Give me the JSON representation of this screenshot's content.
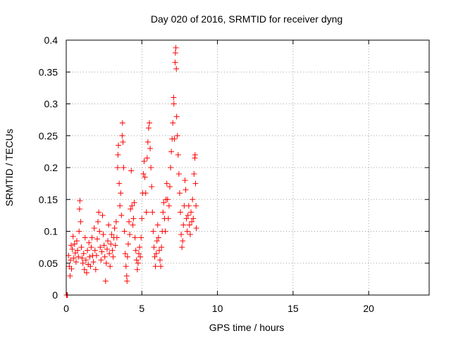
{
  "chart_data": {
    "type": "scatter",
    "title": "Day 020 of 2016, SRMTID for receiver dyng",
    "xlabel": "GPS time / hours",
    "ylabel": "SRMTID / TECUs",
    "xlim": [
      0,
      24
    ],
    "ylim": [
      0,
      0.4
    ],
    "xticks": [
      0,
      5,
      10,
      15,
      20
    ],
    "yticks": [
      0,
      0.05,
      0.1,
      0.15,
      0.2,
      0.25,
      0.3,
      0.35,
      0.4
    ],
    "grid": true,
    "marker": "+",
    "color": "#ff0000",
    "series": [
      {
        "name": "SRMTID",
        "points": [
          [
            0.02,
            0.0
          ],
          [
            0.05,
            0.0
          ],
          [
            0.08,
            0.0
          ],
          [
            0.15,
            0.062
          ],
          [
            0.2,
            0.045
          ],
          [
            0.25,
            0.03
          ],
          [
            0.28,
            0.055
          ],
          [
            0.32,
            0.078
          ],
          [
            0.35,
            0.041
          ],
          [
            0.4,
            0.072
          ],
          [
            0.45,
            0.092
          ],
          [
            0.5,
            0.058
          ],
          [
            0.55,
            0.08
          ],
          [
            0.6,
            0.066
          ],
          [
            0.65,
            0.052
          ],
          [
            0.7,
            0.085
          ],
          [
            0.75,
            0.07
          ],
          [
            0.8,
            0.06
          ],
          [
            0.85,
            0.1
          ],
          [
            0.88,
            0.135
          ],
          [
            0.9,
            0.148
          ],
          [
            0.95,
            0.115
          ],
          [
            1.0,
            0.075
          ],
          [
            1.05,
            0.058
          ],
          [
            1.1,
            0.05
          ],
          [
            1.15,
            0.065
          ],
          [
            1.2,
            0.04
          ],
          [
            1.25,
            0.09
          ],
          [
            1.3,
            0.055
          ],
          [
            1.35,
            0.035
          ],
          [
            1.4,
            0.07
          ],
          [
            1.45,
            0.048
          ],
          [
            1.5,
            0.082
          ],
          [
            1.55,
            0.06
          ],
          [
            1.6,
            0.045
          ],
          [
            1.65,
            0.075
          ],
          [
            1.7,
            0.09
          ],
          [
            1.75,
            0.062
          ],
          [
            1.8,
            0.052
          ],
          [
            1.85,
            0.105
          ],
          [
            1.9,
            0.07
          ],
          [
            1.95,
            0.04
          ],
          [
            2.0,
            0.062
          ],
          [
            2.05,
            0.088
          ],
          [
            2.1,
            0.115
          ],
          [
            2.15,
            0.13
          ],
          [
            2.2,
            0.1
          ],
          [
            2.25,
            0.075
          ],
          [
            2.3,
            0.055
          ],
          [
            2.35,
            0.068
          ],
          [
            2.4,
            0.125
          ],
          [
            2.45,
            0.095
          ],
          [
            2.5,
            0.078
          ],
          [
            2.55,
            0.06
          ],
          [
            2.6,
            0.022
          ],
          [
            2.65,
            0.05
          ],
          [
            2.7,
            0.072
          ],
          [
            2.75,
            0.085
          ],
          [
            2.8,
            0.11
          ],
          [
            2.85,
            0.065
          ],
          [
            2.9,
            0.045
          ],
          [
            2.95,
            0.08
          ],
          [
            3.0,
            0.095
          ],
          [
            3.05,
            0.07
          ],
          [
            3.1,
            0.06
          ],
          [
            3.15,
            0.09
          ],
          [
            3.2,
            0.105
          ],
          [
            3.25,
            0.078
          ],
          [
            3.3,
            0.115
          ],
          [
            3.35,
            0.09
          ],
          [
            3.4,
            0.2
          ],
          [
            3.42,
            0.22
          ],
          [
            3.45,
            0.235
          ],
          [
            3.5,
            0.175
          ],
          [
            3.55,
            0.14
          ],
          [
            3.6,
            0.16
          ],
          [
            3.65,
            0.125
          ],
          [
            3.7,
            0.25
          ],
          [
            3.72,
            0.27
          ],
          [
            3.75,
            0.24
          ],
          [
            3.8,
            0.2
          ],
          [
            3.85,
            0.1
          ],
          [
            3.9,
            0.065
          ],
          [
            3.95,
            0.045
          ],
          [
            4.0,
            0.03
          ],
          [
            4.02,
            0.022
          ],
          [
            4.05,
            0.06
          ],
          [
            4.1,
            0.08
          ],
          [
            4.15,
            0.115
          ],
          [
            4.2,
            0.095
          ],
          [
            4.25,
            0.135
          ],
          [
            4.3,
            0.195
          ],
          [
            4.35,
            0.14
          ],
          [
            4.4,
            0.11
          ],
          [
            4.45,
            0.12
          ],
          [
            4.5,
            0.145
          ],
          [
            4.55,
            0.09
          ],
          [
            4.6,
            0.07
          ],
          [
            4.65,
            0.055
          ],
          [
            4.7,
            0.04
          ],
          [
            4.75,
            0.05
          ],
          [
            4.8,
            0.065
          ],
          [
            4.85,
            0.075
          ],
          [
            4.9,
            0.06
          ],
          [
            4.95,
            0.09
          ],
          [
            5.0,
            0.12
          ],
          [
            5.05,
            0.16
          ],
          [
            5.1,
            0.19
          ],
          [
            5.15,
            0.21
          ],
          [
            5.2,
            0.185
          ],
          [
            5.25,
            0.16
          ],
          [
            5.3,
            0.13
          ],
          [
            5.35,
            0.215
          ],
          [
            5.4,
            0.24
          ],
          [
            5.45,
            0.262
          ],
          [
            5.5,
            0.27
          ],
          [
            5.55,
            0.23
          ],
          [
            5.6,
            0.2
          ],
          [
            5.65,
            0.17
          ],
          [
            5.7,
            0.13
          ],
          [
            5.75,
            0.1
          ],
          [
            5.8,
            0.075
          ],
          [
            5.85,
            0.06
          ],
          [
            5.9,
            0.045
          ],
          [
            5.95,
            0.065
          ],
          [
            6.0,
            0.085
          ],
          [
            6.05,
            0.11
          ],
          [
            6.1,
            0.09
          ],
          [
            6.15,
            0.07
          ],
          [
            6.2,
            0.055
          ],
          [
            6.25,
            0.045
          ],
          [
            6.3,
            0.075
          ],
          [
            6.35,
            0.1
          ],
          [
            6.4,
            0.13
          ],
          [
            6.45,
            0.145
          ],
          [
            6.5,
            0.12
          ],
          [
            6.55,
            0.1
          ],
          [
            6.6,
            0.15
          ],
          [
            6.65,
            0.175
          ],
          [
            6.7,
            0.15
          ],
          [
            6.75,
            0.12
          ],
          [
            6.8,
            0.14
          ],
          [
            6.85,
            0.17
          ],
          [
            6.9,
            0.2
          ],
          [
            6.95,
            0.225
          ],
          [
            7.0,
            0.245
          ],
          [
            7.05,
            0.27
          ],
          [
            7.1,
            0.31
          ],
          [
            7.12,
            0.3
          ],
          [
            7.15,
            0.245
          ],
          [
            7.2,
            0.365
          ],
          [
            7.22,
            0.38
          ],
          [
            7.25,
            0.388
          ],
          [
            7.28,
            0.355
          ],
          [
            7.3,
            0.28
          ],
          [
            7.35,
            0.25
          ],
          [
            7.4,
            0.22
          ],
          [
            7.45,
            0.19
          ],
          [
            7.5,
            0.16
          ],
          [
            7.55,
            0.13
          ],
          [
            7.6,
            0.095
          ],
          [
            7.65,
            0.075
          ],
          [
            7.7,
            0.085
          ],
          [
            7.75,
            0.11
          ],
          [
            7.8,
            0.14
          ],
          [
            7.85,
            0.18
          ],
          [
            7.9,
            0.165
          ],
          [
            7.95,
            0.12
          ],
          [
            8.0,
            0.1
          ],
          [
            8.05,
            0.125
          ],
          [
            8.1,
            0.14
          ],
          [
            8.15,
            0.11
          ],
          [
            8.2,
            0.095
          ],
          [
            8.25,
            0.13
          ],
          [
            8.3,
            0.115
          ],
          [
            8.35,
            0.15
          ],
          [
            8.4,
            0.12
          ],
          [
            8.45,
            0.19
          ],
          [
            8.5,
            0.215
          ],
          [
            8.52,
            0.22
          ],
          [
            8.55,
            0.175
          ],
          [
            8.58,
            0.14
          ],
          [
            8.6,
            0.105
          ]
        ]
      }
    ]
  }
}
